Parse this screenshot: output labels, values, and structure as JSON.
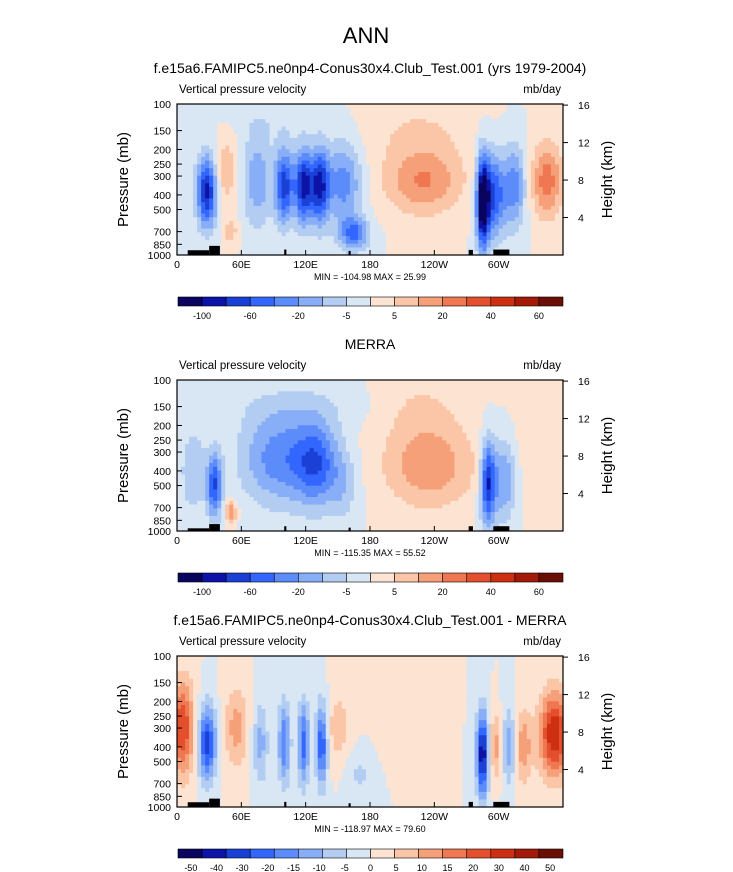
{
  "page_title": "ANN",
  "colors": {
    "bwr_12": [
      "#09055f",
      "#0d13a7",
      "#1a40d6",
      "#3366ff",
      "#5c8bfa",
      "#88aef7",
      "#b3cdf2",
      "#d9e7f5",
      "#fde4d2",
      "#fbc6a7",
      "#f6a07a",
      "#ef7751",
      "#e44f2e",
      "#cc3011",
      "#a31a0a",
      "#6a0f06"
    ],
    "terrain": "#000000"
  },
  "panels": [
    {
      "title": "f.e15a6.FAMIPC5.ne0np4-Conus30x4.Club_Test.001 (yrs 1979-2004)",
      "left_label": "Vertical pressure velocity",
      "right_label": "mb/day",
      "minmax": "MIN = -104.98   MAX =  25.99",
      "y_title": "Pressure (mb)",
      "y2_title": "Height (km)"
    },
    {
      "title": "MERRA",
      "left_label": "Vertical pressure velocity",
      "right_label": "mb/day",
      "minmax": "MIN = -115.35   MAX =  55.52",
      "y_title": "Pressure (mb)",
      "y2_title": "Height (km)"
    },
    {
      "title": "f.e15a6.FAMIPC5.ne0np4-Conus30x4.Club_Test.001 - MERRA",
      "left_label": "Vertical pressure velocity",
      "right_label": "mb/day",
      "minmax": "MIN = -118.97   MAX =  79.60",
      "y_title": "Pressure (mb)",
      "y2_title": "Height (km)"
    }
  ],
  "chart_data": [
    {
      "type": "heatmap",
      "title": "f.e15a6.FAMIPC5.ne0np4-Conus30x4.Club_Test.001 (yrs 1979-2004)",
      "ylabel": "Pressure (mb)",
      "y2label": "Height (km)",
      "x_ticks": [
        {
          "v": 0,
          "l": "0"
        },
        {
          "v": 60,
          "l": "60E"
        },
        {
          "v": 120,
          "l": "120E"
        },
        {
          "v": 180,
          "l": "180"
        },
        {
          "v": 240,
          "l": "120W"
        },
        {
          "v": 300,
          "l": "60W"
        }
      ],
      "xlim": [
        0,
        360
      ],
      "y_ticks": [
        100,
        150,
        200,
        250,
        300,
        400,
        500,
        700,
        850,
        1000
      ],
      "ylim": [
        1000,
        100
      ],
      "y_scale": "log",
      "y2_ticks": [
        {
          "km": 4,
          "l": "4"
        },
        {
          "km": 8,
          "l": "8"
        },
        {
          "km": 12,
          "l": "12"
        },
        {
          "km": 16,
          "l": "16"
        }
      ],
      "colorbar_labels": [
        "-100",
        "-60",
        "-20",
        "-5",
        "5",
        "20",
        "40",
        "60"
      ],
      "blobs": [
        {
          "lon": 28,
          "p": 380,
          "wx": 7,
          "wy": 0.38,
          "a": -32
        },
        {
          "lon": 45,
          "p": 280,
          "wx": 8,
          "wy": 0.35,
          "a": 10
        },
        {
          "lon": 50,
          "p": 700,
          "wx": 5,
          "wy": 0.15,
          "a": 8
        },
        {
          "lon": 75,
          "p": 320,
          "wx": 10,
          "wy": 0.5,
          "a": -14
        },
        {
          "lon": 100,
          "p": 350,
          "wx": 6,
          "wy": 0.4,
          "a": -28
        },
        {
          "lon": 118,
          "p": 350,
          "wx": 6,
          "wy": 0.4,
          "a": -32
        },
        {
          "lon": 133,
          "p": 350,
          "wx": 6,
          "wy": 0.4,
          "a": -30
        },
        {
          "lon": 155,
          "p": 330,
          "wx": 12,
          "wy": 0.45,
          "a": -18
        },
        {
          "lon": 165,
          "p": 720,
          "wx": 10,
          "wy": 0.18,
          "a": -20
        },
        {
          "lon": 230,
          "p": 330,
          "wx": 25,
          "wy": 0.35,
          "a": 15
        },
        {
          "lon": 225,
          "p": 150,
          "wx": 40,
          "wy": 0.4,
          "a": 5
        },
        {
          "lon": 285,
          "p": 450,
          "wx": 4,
          "wy": 0.5,
          "a": -38
        },
        {
          "lon": 295,
          "p": 400,
          "wx": 8,
          "wy": 0.45,
          "a": -26
        },
        {
          "lon": 315,
          "p": 350,
          "wx": 7,
          "wy": 0.45,
          "a": -18
        },
        {
          "lon": 345,
          "p": 320,
          "wx": 10,
          "wy": 0.4,
          "a": 18
        },
        {
          "lon": 90,
          "p": 130,
          "wx": 30,
          "wy": 0.2,
          "a": -3
        }
      ],
      "terrain": [
        [
          10,
          30,
          930
        ],
        [
          30,
          40,
          870
        ],
        [
          100,
          102,
          920
        ],
        [
          160,
          162,
          940
        ],
        [
          272,
          276,
          925
        ],
        [
          295,
          310,
          920
        ]
      ]
    },
    {
      "type": "heatmap",
      "title": "MERRA",
      "ylabel": "Pressure (mb)",
      "y2label": "Height (km)",
      "x_ticks": [
        {
          "v": 0,
          "l": "0"
        },
        {
          "v": 60,
          "l": "60E"
        },
        {
          "v": 120,
          "l": "120E"
        },
        {
          "v": 180,
          "l": "180"
        },
        {
          "v": 240,
          "l": "120W"
        },
        {
          "v": 300,
          "l": "60W"
        }
      ],
      "xlim": [
        0,
        360
      ],
      "y_ticks": [
        100,
        150,
        200,
        250,
        300,
        400,
        500,
        700,
        850,
        1000
      ],
      "ylim": [
        1000,
        100
      ],
      "y_scale": "log",
      "y2_ticks": [
        {
          "km": 4,
          "l": "4"
        },
        {
          "km": 8,
          "l": "8"
        },
        {
          "km": 12,
          "l": "12"
        },
        {
          "km": 16,
          "l": "16"
        }
      ],
      "colorbar_labels": [
        "-100",
        "-60",
        "-20",
        "-5",
        "5",
        "20",
        "40",
        "60"
      ],
      "blobs": [
        {
          "lon": 15,
          "p": 400,
          "wx": 8,
          "wy": 0.45,
          "a": -10
        },
        {
          "lon": 35,
          "p": 500,
          "wx": 5,
          "wy": 0.35,
          "a": -25
        },
        {
          "lon": 50,
          "p": 750,
          "wx": 4,
          "wy": 0.12,
          "a": 15
        },
        {
          "lon": 95,
          "p": 330,
          "wx": 25,
          "wy": 0.5,
          "a": -18
        },
        {
          "lon": 130,
          "p": 360,
          "wx": 14,
          "wy": 0.45,
          "a": -20
        },
        {
          "lon": 155,
          "p": 500,
          "wx": 10,
          "wy": 0.4,
          "a": -8
        },
        {
          "lon": 120,
          "p": 150,
          "wx": 50,
          "wy": 0.25,
          "a": -4
        },
        {
          "lon": 235,
          "p": 370,
          "wx": 30,
          "wy": 0.45,
          "a": 14
        },
        {
          "lon": 225,
          "p": 150,
          "wx": 30,
          "wy": 0.35,
          "a": 5
        },
        {
          "lon": 290,
          "p": 480,
          "wx": 5,
          "wy": 0.45,
          "a": -30
        },
        {
          "lon": 305,
          "p": 450,
          "wx": 8,
          "wy": 0.45,
          "a": -16
        },
        {
          "lon": 340,
          "p": 280,
          "wx": 25,
          "wy": 0.55,
          "a": 3
        }
      ],
      "terrain": [
        [
          10,
          30,
          960
        ],
        [
          30,
          40,
          900
        ],
        [
          100,
          102,
          930
        ],
        [
          160,
          162,
          950
        ],
        [
          272,
          276,
          930
        ],
        [
          295,
          310,
          930
        ]
      ]
    },
    {
      "type": "heatmap",
      "title": "f.e15a6.FAMIPC5.ne0np4-Conus30x4.Club_Test.001 - MERRA",
      "ylabel": "Pressure (mb)",
      "y2label": "Height (km)",
      "x_ticks": [
        {
          "v": 0,
          "l": "0"
        },
        {
          "v": 60,
          "l": "60E"
        },
        {
          "v": 120,
          "l": "120E"
        },
        {
          "v": 180,
          "l": "180"
        },
        {
          "v": 240,
          "l": "120W"
        },
        {
          "v": 300,
          "l": "60W"
        }
      ],
      "xlim": [
        0,
        360
      ],
      "y_ticks": [
        100,
        150,
        200,
        250,
        300,
        400,
        500,
        700,
        850,
        1000
      ],
      "ylim": [
        1000,
        100
      ],
      "y_scale": "log",
      "y2_ticks": [
        {
          "km": 4,
          "l": "4"
        },
        {
          "km": 8,
          "l": "8"
        },
        {
          "km": 12,
          "l": "12"
        },
        {
          "km": 16,
          "l": "16"
        }
      ],
      "colorbar_labels": [
        "-50",
        "-40",
        "-30",
        "-20",
        "-15",
        "-10",
        "-5",
        "0",
        "5",
        "10",
        "15",
        "20",
        "30",
        "40",
        "50"
      ],
      "blobs": [
        {
          "lon": 5,
          "p": 300,
          "wx": 8,
          "wy": 0.5,
          "a": 25
        },
        {
          "lon": 28,
          "p": 380,
          "wx": 6,
          "wy": 0.4,
          "a": -28
        },
        {
          "lon": 55,
          "p": 300,
          "wx": 8,
          "wy": 0.45,
          "a": 12
        },
        {
          "lon": 78,
          "p": 380,
          "wx": 5,
          "wy": 0.45,
          "a": -12
        },
        {
          "lon": 100,
          "p": 380,
          "wx": 4,
          "wy": 0.45,
          "a": -20
        },
        {
          "lon": 118,
          "p": 380,
          "wx": 4,
          "wy": 0.45,
          "a": -22
        },
        {
          "lon": 135,
          "p": 380,
          "wx": 4,
          "wy": 0.45,
          "a": -26
        },
        {
          "lon": 150,
          "p": 300,
          "wx": 10,
          "wy": 0.4,
          "a": 8
        },
        {
          "lon": 170,
          "p": 600,
          "wx": 10,
          "wy": 0.3,
          "a": -6
        },
        {
          "lon": 210,
          "p": 300,
          "wx": 15,
          "wy": 0.35,
          "a": 5
        },
        {
          "lon": 285,
          "p": 450,
          "wx": 4,
          "wy": 0.45,
          "a": -35
        },
        {
          "lon": 298,
          "p": 400,
          "wx": 5,
          "wy": 0.35,
          "a": 14
        },
        {
          "lon": 310,
          "p": 400,
          "wx": 6,
          "wy": 0.4,
          "a": -16
        },
        {
          "lon": 322,
          "p": 400,
          "wx": 6,
          "wy": 0.4,
          "a": 15
        },
        {
          "lon": 352,
          "p": 330,
          "wx": 10,
          "wy": 0.45,
          "a": 30
        }
      ],
      "terrain": [
        [
          10,
          30,
          930
        ],
        [
          30,
          40,
          880
        ],
        [
          100,
          102,
          925
        ],
        [
          160,
          162,
          945
        ],
        [
          272,
          276,
          925
        ],
        [
          295,
          310,
          925
        ]
      ]
    }
  ]
}
